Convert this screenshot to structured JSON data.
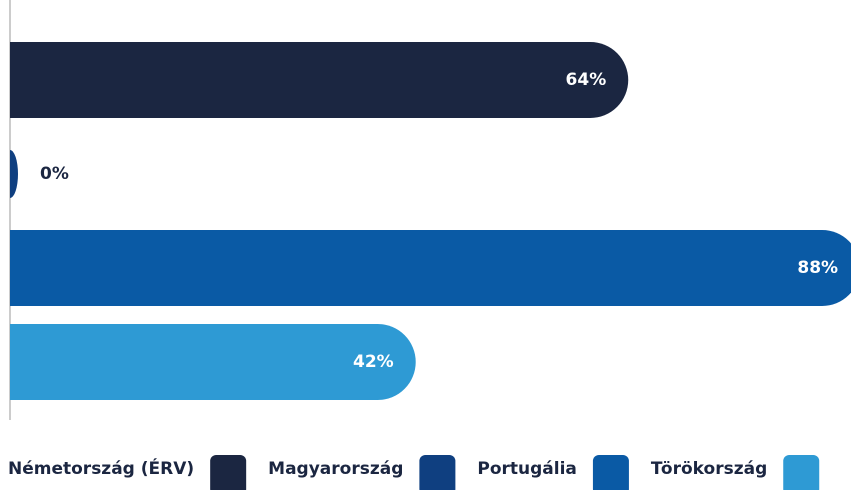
{
  "chart_data": {
    "type": "bar",
    "orientation": "horizontal",
    "categories": [
      "Németország (ÉRV)",
      "Magyarország",
      "Portugália",
      "Törökország"
    ],
    "values": [
      64,
      0,
      88,
      42
    ],
    "value_labels": [
      "64%",
      "0%",
      "88%",
      "42%"
    ],
    "colors": [
      "#1b2641",
      "#0f3f80",
      "#0a5aa5",
      "#2e9ad4"
    ],
    "xlim": [
      0,
      100
    ]
  }
}
